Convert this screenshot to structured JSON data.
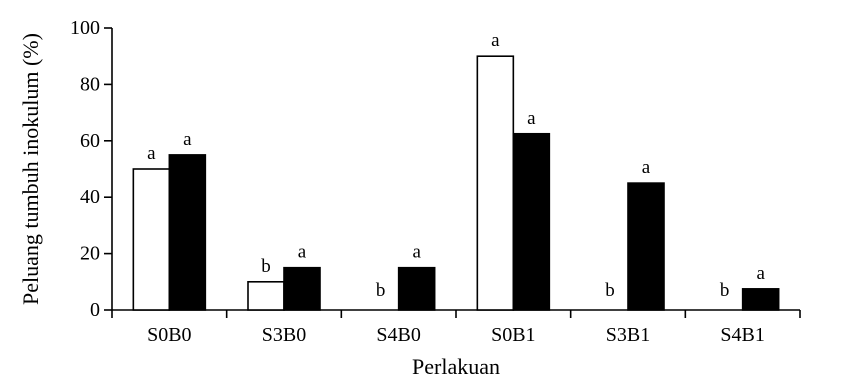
{
  "chart_data": {
    "type": "bar",
    "title": "",
    "xlabel": "Perlakuan",
    "ylabel": "Peluang tumbuh inokulum (%)",
    "ylim": [
      0,
      100
    ],
    "yticks": [
      0,
      20,
      40,
      60,
      80,
      100
    ],
    "categories": [
      "S0B0",
      "S3B0",
      "S4B0",
      "S0B1",
      "S3B1",
      "S4B1"
    ],
    "series": [
      {
        "fill": "#ffffff",
        "values": [
          50,
          10,
          0,
          90,
          0,
          0
        ],
        "labels": [
          "a",
          "b",
          "b",
          "a",
          "b",
          "b"
        ]
      },
      {
        "fill": "#000000",
        "values": [
          55,
          15,
          15,
          62.5,
          45,
          7.5
        ],
        "labels": [
          "a",
          "a",
          "a",
          "a",
          "a",
          "a"
        ]
      }
    ],
    "grid": false,
    "legend": "none"
  }
}
